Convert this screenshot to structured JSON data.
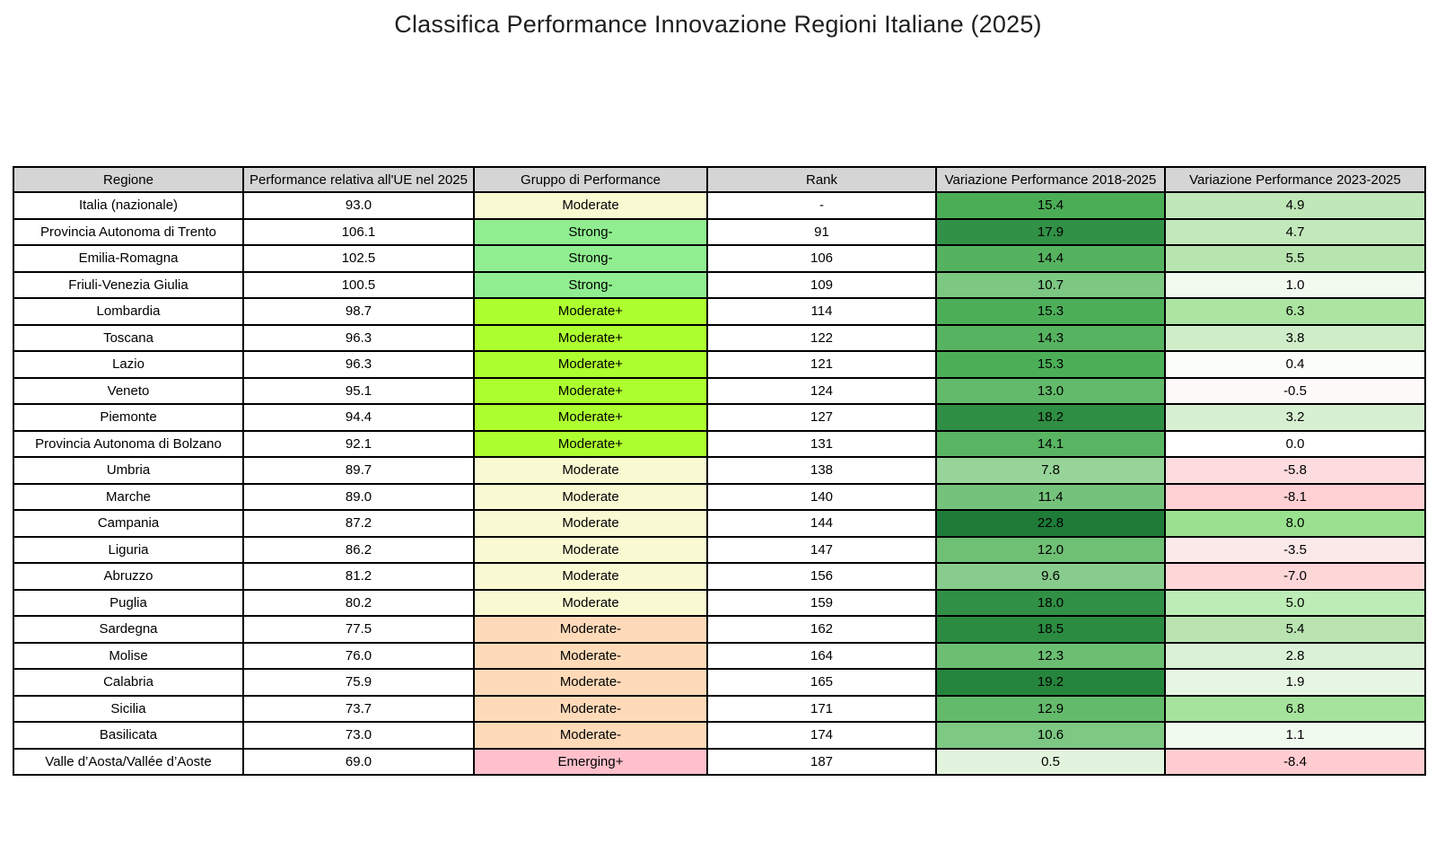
{
  "title": "Classifica Performance Innovazione Regioni Italiane (2025)",
  "styles": {
    "header_bg": "#D5D5D5",
    "default_cell_bg": "#FFFFFF",
    "border_color": "#000000",
    "group_colors": {
      "Moderate": "#FAFAD2",
      "Strong-": "#90EE90",
      "Moderate+": "#ADFF2F",
      "Moderate-": "#FFDAB9",
      "Emerging+": "#FFC0CB"
    }
  },
  "chart_data": {
    "type": "table",
    "columns": [
      "Regione",
      "Performance relativa all'UE nel 2025",
      "Gruppo di Performance",
      "Rank",
      "Variazione Performance 2018-2025",
      "Variazione Performance 2023-2025"
    ],
    "rows": [
      {
        "regione": "Italia (nazionale)",
        "performance": "93.0",
        "gruppo": "Moderate",
        "rank": "-",
        "var_2018_2025": "15.4",
        "var_2023_2025": "4.9",
        "var1_bg": "#4BAE57",
        "var2_bg": "#C0E7B8"
      },
      {
        "regione": "Provincia Autonoma di Trento",
        "performance": "106.1",
        "gruppo": "Strong-",
        "rank": "91",
        "var_2018_2025": "17.9",
        "var_2023_2025": "4.7",
        "var1_bg": "#319146",
        "var2_bg": "#C3E8BC"
      },
      {
        "regione": "Emilia-Romagna",
        "performance": "102.5",
        "gruppo": "Strong-",
        "rank": "106",
        "var_2018_2025": "14.4",
        "var_2023_2025": "5.5",
        "var1_bg": "#55B25F",
        "var2_bg": "#B8E4B0"
      },
      {
        "regione": "Friuli-Venezia Giulia",
        "performance": "100.5",
        "gruppo": "Strong-",
        "rank": "109",
        "var_2018_2025": "10.7",
        "var_2023_2025": "1.0",
        "var1_bg": "#7CC782",
        "var2_bg": "#F2FAF0"
      },
      {
        "regione": "Lombardia",
        "performance": "98.7",
        "gruppo": "Moderate+",
        "rank": "114",
        "var_2018_2025": "15.3",
        "var_2023_2025": "6.3",
        "var1_bg": "#4CAF58",
        "var2_bg": "#ACE5A2"
      },
      {
        "regione": "Toscana",
        "performance": "96.3",
        "gruppo": "Moderate+",
        "rank": "122",
        "var_2018_2025": "14.3",
        "var_2023_2025": "3.8",
        "var1_bg": "#56B360",
        "var2_bg": "#CFEDC9"
      },
      {
        "regione": "Lazio",
        "performance": "96.3",
        "gruppo": "Moderate+",
        "rank": "121",
        "var_2018_2025": "15.3",
        "var_2023_2025": "0.4",
        "var1_bg": "#4CAF58",
        "var2_bg": "#FAFDF8"
      },
      {
        "regione": "Veneto",
        "performance": "95.1",
        "gruppo": "Moderate+",
        "rank": "124",
        "var_2018_2025": "13.0",
        "var_2023_2025": "-0.5",
        "var1_bg": "#63BA6A",
        "var2_bg": "#FEFAFA"
      },
      {
        "regione": "Piemonte",
        "performance": "94.4",
        "gruppo": "Moderate+",
        "rank": "127",
        "var_2018_2025": "18.2",
        "var_2023_2025": "3.2",
        "var1_bg": "#2E8E43",
        "var2_bg": "#D8F0D2"
      },
      {
        "regione": "Provincia Autonoma di Bolzano",
        "performance": "92.1",
        "gruppo": "Moderate+",
        "rank": "131",
        "var_2018_2025": "14.1",
        "var_2023_2025": "0.0",
        "var1_bg": "#59B562",
        "var2_bg": "#FFFFFF"
      },
      {
        "regione": "Umbria",
        "performance": "89.7",
        "gruppo": "Moderate",
        "rank": "138",
        "var_2018_2025": "7.8",
        "var_2023_2025": "-5.8",
        "var1_bg": "#97D49A",
        "var2_bg": "#FCDCDE"
      },
      {
        "regione": "Marche",
        "performance": "89.0",
        "gruppo": "Moderate",
        "rank": "140",
        "var_2018_2025": "11.4",
        "var_2023_2025": "-8.1",
        "var1_bg": "#75C37B",
        "var2_bg": "#FFD0D4"
      },
      {
        "regione": "Campania",
        "performance": "87.2",
        "gruppo": "Moderate",
        "rank": "144",
        "var_2018_2025": "22.8",
        "var_2023_2025": "8.0",
        "var1_bg": "#1E7B38",
        "var2_bg": "#99E18F"
      },
      {
        "regione": "Liguria",
        "performance": "86.2",
        "gruppo": "Moderate",
        "rank": "147",
        "var_2018_2025": "12.0",
        "var_2023_2025": "-3.5",
        "var1_bg": "#6FC075",
        "var2_bg": "#FBE9E9"
      },
      {
        "regione": "Abruzzo",
        "performance": "81.2",
        "gruppo": "Moderate",
        "rank": "156",
        "var_2018_2025": "9.6",
        "var_2023_2025": "-7.0",
        "var1_bg": "#87CC8C",
        "var2_bg": "#FDD6D8"
      },
      {
        "regione": "Puglia",
        "performance": "80.2",
        "gruppo": "Moderate",
        "rank": "159",
        "var_2018_2025": "18.0",
        "var_2023_2025": "5.0",
        "var1_bg": "#309045",
        "var2_bg": "#BDEDB7"
      },
      {
        "regione": "Sardegna",
        "performance": "77.5",
        "gruppo": "Moderate-",
        "rank": "162",
        "var_2018_2025": "18.5",
        "var_2023_2025": "5.4",
        "var1_bg": "#2B8B41",
        "var2_bg": "#B9E4B1"
      },
      {
        "regione": "Molise",
        "performance": "76.0",
        "gruppo": "Moderate-",
        "rank": "164",
        "var_2018_2025": "12.3",
        "var_2023_2025": "2.8",
        "var1_bg": "#6BBE72",
        "var2_bg": "#DAF1D7"
      },
      {
        "regione": "Calabria",
        "performance": "75.9",
        "gruppo": "Moderate-",
        "rank": "165",
        "var_2018_2025": "19.2",
        "var_2023_2025": "1.9",
        "var1_bg": "#26853D",
        "var2_bg": "#E7F6E4"
      },
      {
        "regione": "Sicilia",
        "performance": "73.7",
        "gruppo": "Moderate-",
        "rank": "171",
        "var_2018_2025": "12.9",
        "var_2023_2025": "6.8",
        "var1_bg": "#64BA6B",
        "var2_bg": "#A6E39C"
      },
      {
        "regione": "Basilicata",
        "performance": "73.0",
        "gruppo": "Moderate-",
        "rank": "174",
        "var_2018_2025": "10.6",
        "var_2023_2025": "1.1",
        "var1_bg": "#7DC883",
        "var2_bg": "#F1FAEF"
      },
      {
        "regione": "Valle d’Aosta/Vallée d’Aoste",
        "performance": "69.0",
        "gruppo": "Emerging+",
        "rank": "187",
        "var_2018_2025": "0.5",
        "var_2023_2025": "-8.4",
        "var1_bg": "#E3F4DE",
        "var2_bg": "#FFCDD1"
      }
    ]
  }
}
